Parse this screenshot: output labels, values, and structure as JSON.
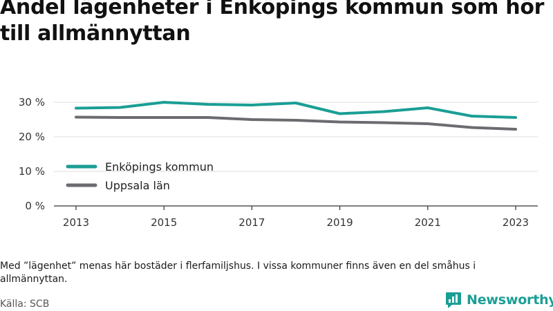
{
  "title": "Andel lägenheter i Enköpings kommun som hör till allmännyttan",
  "note": "Med ”lägenhet” menas här bostäder i flerfamiljshus. I vissa kommuner finns även en del småhus i allmännyttan.",
  "source": "Källa: SCB",
  "brand": {
    "name": "Newsworthy",
    "icon": "newsworthy-logo-icon",
    "color": "#1a9e95"
  },
  "chart_data": {
    "type": "line",
    "x": [
      2013,
      2014,
      2015,
      2016,
      2017,
      2018,
      2019,
      2020,
      2021,
      2022,
      2023
    ],
    "x_tick_labels": [
      "2013",
      "2015",
      "2017",
      "2019",
      "2021",
      "2023"
    ],
    "y_tick_labels": [
      "0 %",
      "10 %",
      "20 %",
      "30 %"
    ],
    "ylim": [
      0,
      30
    ],
    "grid": true,
    "legend_position": "lower-left",
    "series": [
      {
        "name": "Enköpings kommun",
        "color": "#1a9e95",
        "values": [
          28.3,
          28.5,
          30.0,
          29.4,
          29.2,
          29.8,
          26.7,
          27.3,
          28.4,
          26.0,
          25.6
        ]
      },
      {
        "name": "Uppsala län",
        "color": "#6b6b70",
        "values": [
          25.7,
          25.6,
          25.6,
          25.6,
          25.0,
          24.8,
          24.3,
          24.1,
          23.8,
          22.7,
          22.2
        ]
      }
    ]
  }
}
